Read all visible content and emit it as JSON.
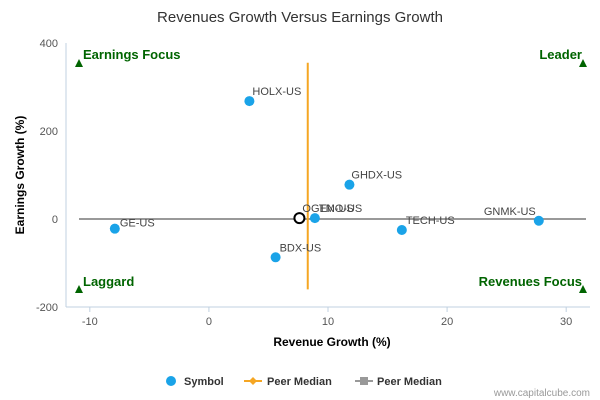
{
  "chart_data": {
    "type": "scatter",
    "title": "Revenues Growth Versus Earnings Growth",
    "xlabel": "Revenue Growth (%)",
    "ylabel": "Earnings Growth (%)",
    "xlim": [
      -12,
      32
    ],
    "ylim": [
      -200,
      400
    ],
    "xticks": [
      -10,
      0,
      10,
      20,
      30
    ],
    "yticks": [
      -200,
      0,
      200,
      400
    ],
    "grid": false,
    "legend_position": "bottom",
    "quadrants": {
      "top_left": "Earnings Focus",
      "top_right": "Leader",
      "bottom_left": "Laggard",
      "bottom_right": "Revenues Focus"
    },
    "series": [
      {
        "name": "Symbol",
        "color": "#1aa3e8",
        "points": [
          {
            "label": "HOLX-US",
            "x": 3.4,
            "y": 268
          },
          {
            "label": "GHDX-US",
            "x": 11.8,
            "y": 78
          },
          {
            "label": "TMO-US",
            "x": 8.9,
            "y": 2
          },
          {
            "label": "GE-US",
            "x": -7.9,
            "y": -22
          },
          {
            "label": "BDX-US",
            "x": 5.6,
            "y": -87
          },
          {
            "label": "TECH-US",
            "x": 16.2,
            "y": -25
          },
          {
            "label": "GNMK-US",
            "x": 27.7,
            "y": -4
          }
        ]
      },
      {
        "name": "Peer Median",
        "color": "#f5a623",
        "marker": "diamond",
        "orientation": "vertical",
        "x": 8.3,
        "y_range": [
          -160,
          355
        ]
      },
      {
        "name": "Peer Median",
        "color": "#999999",
        "marker": "square",
        "orientation": "horizontal",
        "y": 0
      }
    ],
    "focus_point": {
      "label": "OGEN-US",
      "x": 7.6,
      "y": 2
    }
  },
  "credit": "www.capitalcube.com"
}
